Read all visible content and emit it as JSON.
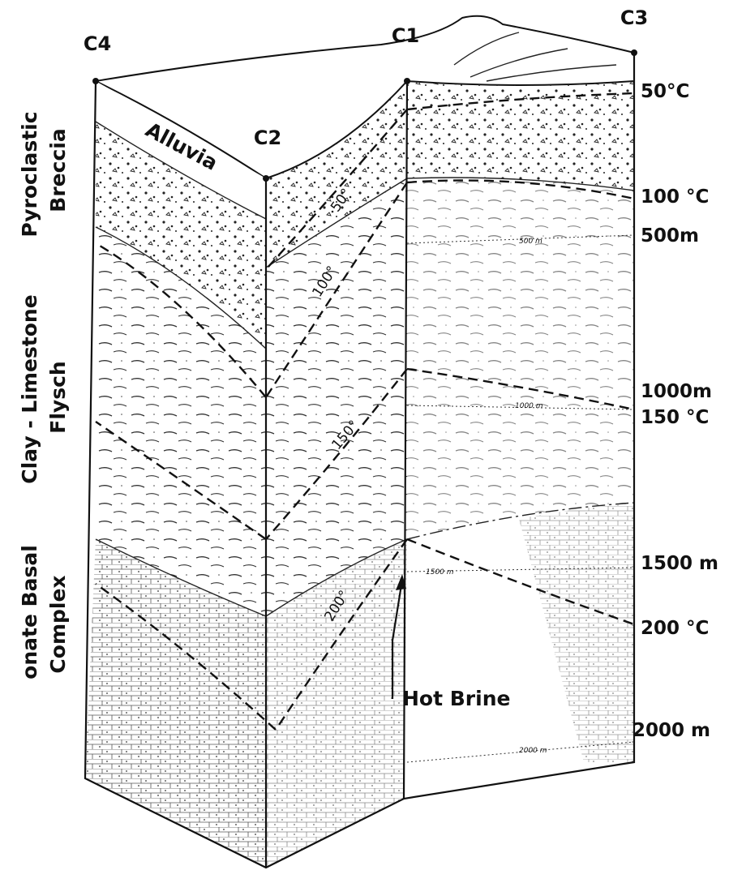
{
  "wells": [
    "C4",
    "C2",
    "C1",
    "C3"
  ],
  "right_labels": [
    "50°C",
    "100 °C",
    "500m",
    "1000m",
    "150 °C",
    "1500 m",
    "200 °C",
    "2000 m"
  ],
  "formations": [
    {
      "line1": "Pyroclastic",
      "line2": "Breccia"
    },
    {
      "line1": "Clay - Limestone",
      "line2": "Flysch"
    },
    {
      "line1": "onate Basal",
      "line2": "Complex"
    }
  ],
  "alluvia": "Alluvia",
  "isotherm_labels": [
    "50°",
    "100°",
    "150°",
    "200°"
  ],
  "face_labels": [
    "500 m",
    "1000 m",
    "1500 m",
    "2000 m"
  ],
  "annotation": "Hot Brine"
}
